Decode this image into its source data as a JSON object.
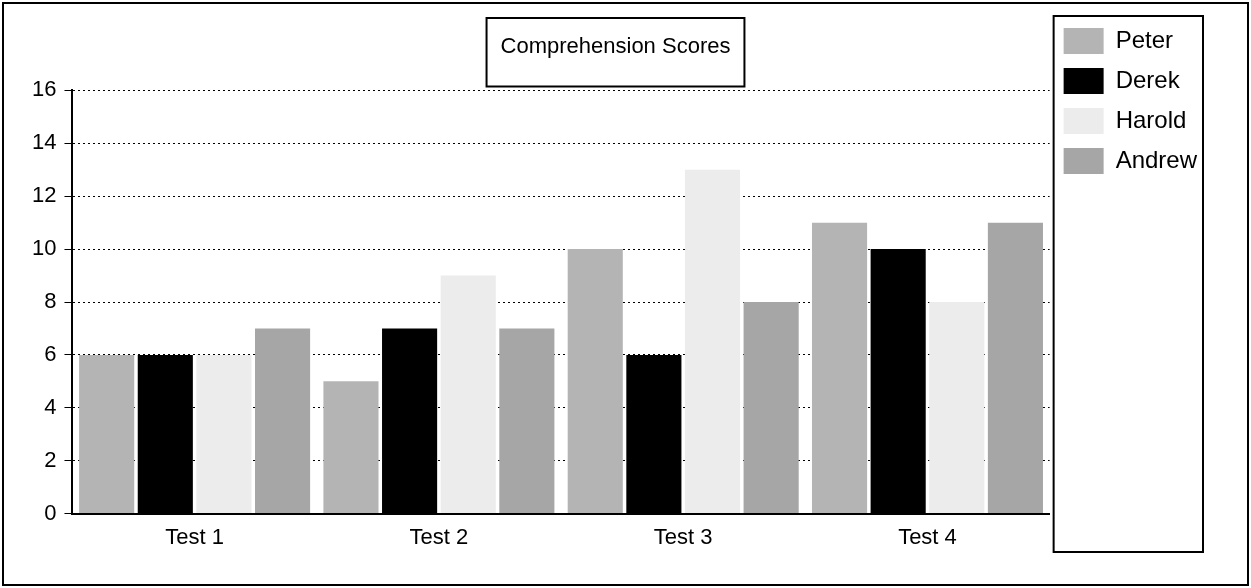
{
  "chart_data": {
    "type": "bar",
    "title": "Comprehension Scores",
    "categories": [
      "Test 1",
      "Test 2",
      "Test 3",
      "Test 4"
    ],
    "series": [
      {
        "name": "Peter",
        "color": "#b4b4b4",
        "values": [
          6,
          5,
          10,
          11
        ]
      },
      {
        "name": "Derek",
        "color": "#000000",
        "values": [
          6,
          7,
          6,
          10
        ]
      },
      {
        "name": "Harold",
        "color": "#ececec",
        "values": [
          6,
          9,
          13,
          8
        ]
      },
      {
        "name": "Andrew",
        "color": "#a6a6a6",
        "values": [
          7,
          7,
          8,
          11
        ]
      }
    ],
    "ylim": [
      0,
      16
    ],
    "yticks": [
      0,
      2,
      4,
      6,
      8,
      10,
      12,
      14,
      16
    ],
    "grid": "y",
    "legend": "top right"
  }
}
